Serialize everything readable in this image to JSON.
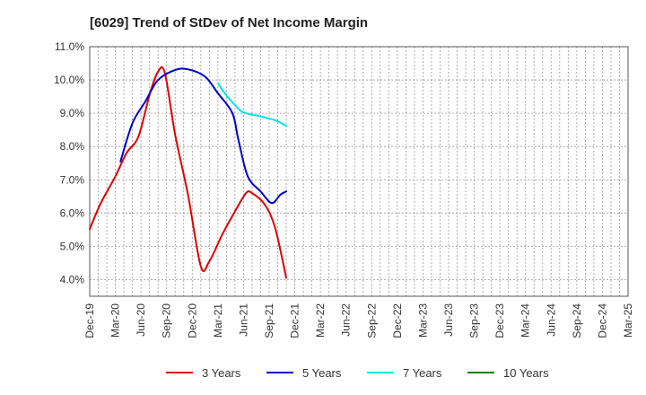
{
  "chart_data": {
    "type": "line",
    "title": "[6029]  Trend of StDev of Net Income Margin",
    "xlabel": "",
    "ylabel": "",
    "y_tick_labels": [
      "4.0%",
      "5.0%",
      "6.0%",
      "7.0%",
      "8.0%",
      "9.0%",
      "10.0%",
      "11.0%"
    ],
    "y_ticks": [
      4.0,
      5.0,
      6.0,
      7.0,
      8.0,
      9.0,
      10.0,
      11.0
    ],
    "ylim": [
      3.5,
      11.0
    ],
    "x_tick_labels": [
      "Dec-19",
      "Mar-20",
      "Jun-20",
      "Sep-20",
      "Dec-20",
      "Mar-21",
      "Jun-21",
      "Sep-21",
      "Dec-21",
      "Mar-22",
      "Jun-22",
      "Sep-22",
      "Dec-22",
      "Mar-23",
      "Jun-23",
      "Sep-23",
      "Dec-23",
      "Mar-24",
      "Jun-24",
      "Sep-24",
      "Dec-24",
      "Mar-25"
    ],
    "grid": true,
    "legend_position": "bottom",
    "series": [
      {
        "name": "3 Years",
        "color": "#e00000",
        "values": [
          5.52,
          6.3,
          7.1,
          7.8,
          8.3,
          9.55,
          10.25,
          10.2,
          8.35,
          6.55,
          4.4,
          4.55,
          5.35,
          6.05,
          6.6,
          6.6,
          6.25,
          5.55,
          4.05
        ],
        "x_index": [
          0,
          1.3,
          3,
          4.3,
          5.7,
          7,
          8,
          8.8,
          10,
          11.5,
          13,
          14,
          15.5,
          17,
          18.3,
          19,
          20.5,
          21.7,
          23
        ]
      },
      {
        "name": "5 Years",
        "color": "#0000cc",
        "values": [
          7.55,
          8.7,
          9.35,
          10.0,
          10.3,
          10.32,
          10.1,
          9.6,
          9.0,
          8.2,
          7.1,
          6.65,
          6.3,
          6.55,
          6.65
        ],
        "x_index": [
          3.6,
          5.0,
          6.5,
          8,
          10,
          11.5,
          13.5,
          15,
          16.7,
          17.4,
          18.5,
          20,
          21.3,
          22.3,
          23
        ]
      },
      {
        "name": "7 Years",
        "color": "#00e5e5",
        "values": [
          9.9,
          9.6,
          9.3,
          9.05,
          8.97,
          8.92,
          8.85,
          8.78,
          8.62
        ],
        "x_index": [
          15,
          15.8,
          16.8,
          17.8,
          18.8,
          19.8,
          20.8,
          21.8,
          23
        ]
      },
      {
        "name": "10 Years",
        "color": "#008000",
        "values": [],
        "x_index": []
      }
    ]
  }
}
